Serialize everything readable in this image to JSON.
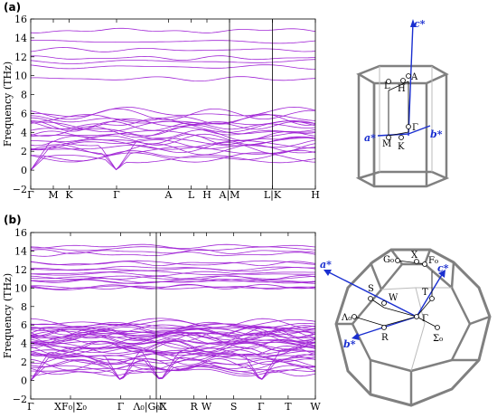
{
  "chart_data": [
    {
      "type": "line",
      "panel_label": "(a)",
      "ylabel": "Frequency (THz)",
      "ylim": [
        -2,
        16
      ],
      "yticks": [
        -2,
        0,
        2,
        4,
        6,
        8,
        10,
        12,
        14,
        16
      ],
      "high_symmetry_points": [
        {
          "label": "Γ",
          "k": 0.0
        },
        {
          "label": "M",
          "k": 0.5
        },
        {
          "label": "K",
          "k": 0.85
        },
        {
          "label": "Γ",
          "k": 1.9
        },
        {
          "label": "A",
          "k": 3.05
        },
        {
          "label": "L",
          "k": 3.55
        },
        {
          "label": "H",
          "k": 3.9
        },
        {
          "label": "A|M",
          "k": 4.4
        },
        {
          "label": "L|K",
          "k": 5.35
        },
        {
          "label": "H",
          "k": 6.3
        }
      ],
      "panel_breaks_k": [
        4.4,
        5.35
      ],
      "band_color": "#a126d6",
      "brillouin_zone": {
        "shape": "hexagonal-prism",
        "points": [
          "A",
          "L",
          "H",
          "Γ",
          "M",
          "K"
        ],
        "vectors": [
          "a*",
          "b*",
          "c*"
        ]
      }
    },
    {
      "type": "line",
      "panel_label": "(b)",
      "ylabel": "Frequency (THz)",
      "ylim": [
        -2,
        16
      ],
      "yticks": [
        -2,
        0,
        2,
        4,
        6,
        8,
        10,
        12,
        14,
        16
      ],
      "high_symmetry_points": [
        {
          "label": "Γ",
          "k": 0.0
        },
        {
          "label": "XF₀|Σ₀",
          "k": 0.95
        },
        {
          "label": "Γ",
          "k": 2.15
        },
        {
          "label": "Λ₀|G₀X",
          "k": 2.85
        },
        {
          "label": "|Γ",
          "k": 3.1
        },
        {
          "label": "R",
          "k": 3.9
        },
        {
          "label": "W",
          "k": 4.2
        },
        {
          "label": "S",
          "k": 4.85
        },
        {
          "label": "Γ",
          "k": 5.5
        },
        {
          "label": "T",
          "k": 6.15
        },
        {
          "label": "W",
          "k": 6.8
        }
      ],
      "panel_breaks_k": [
        3.0
      ],
      "band_color": "#a126d6",
      "brillouin_zone": {
        "shape": "truncated-octahedron",
        "points": [
          "G₀",
          "X",
          "F₀",
          "S",
          "W",
          "T",
          "Λ₀",
          "Γ",
          "R",
          "Σ₀"
        ],
        "vectors": [
          "a*",
          "b*",
          "c*"
        ]
      }
    }
  ]
}
